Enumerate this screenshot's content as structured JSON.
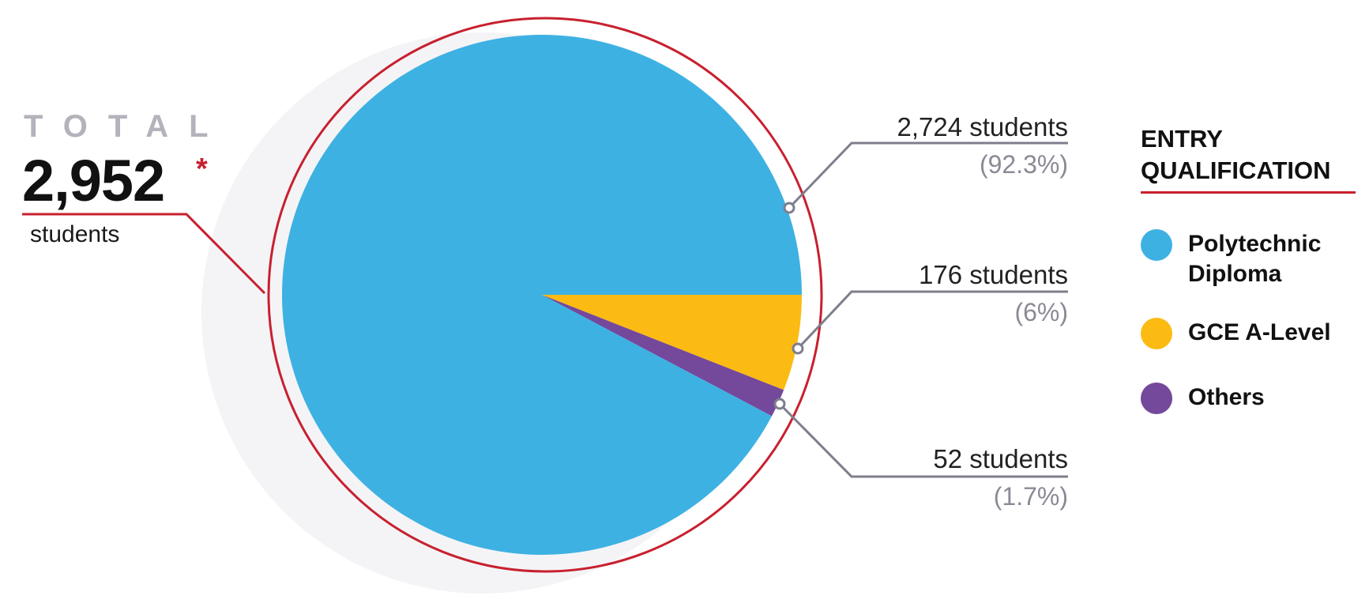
{
  "total": {
    "word": "TOTAL",
    "value": "2,952",
    "asterisk": "*",
    "unit": "students"
  },
  "legend": {
    "title": "ENTRY QUALIFICATION",
    "items": [
      {
        "label": "Polytechnic Diploma",
        "color": "#3eb1e3"
      },
      {
        "label": "GCE A-Level",
        "color": "#fbbb13"
      },
      {
        "label": "Others",
        "color": "#74489b"
      }
    ]
  },
  "callouts": [
    {
      "count": "2,724 students",
      "percent": "(92.3%)"
    },
    {
      "count": "176 students",
      "percent": "(6%)"
    },
    {
      "count": "52 students",
      "percent": "(1.7%)"
    }
  ],
  "chart_data": {
    "type": "pie",
    "labels": [
      "Polytechnic Diploma",
      "GCE A-Level",
      "Others"
    ],
    "values": [
      2724,
      176,
      52
    ],
    "percentages": [
      92.3,
      6,
      1.7
    ],
    "colors": [
      "#3eb1e3",
      "#fbbb13",
      "#74489b"
    ],
    "legend_title": "ENTRY QUALIFICATION",
    "legend_placement": "right"
  }
}
